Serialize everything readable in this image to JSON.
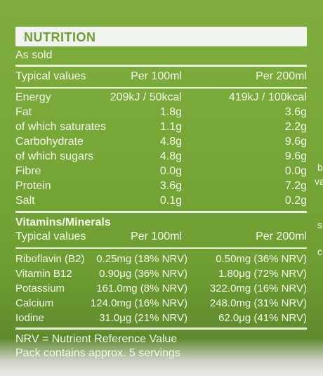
{
  "panel": {
    "title": "NUTRITION",
    "basis": "As sold",
    "energy_table": {
      "headers": [
        "Typical values",
        "Per 100ml",
        "Per 200ml"
      ],
      "rows": [
        {
          "name": "Energy",
          "per100": "209kJ / 50kcal",
          "per200": "419kJ / 100kcal"
        },
        {
          "name": "Fat",
          "per100": "1.8g",
          "per200": "3.6g"
        },
        {
          "name": "of which saturates",
          "per100": "1.1g",
          "per200": "2.2g"
        },
        {
          "name": "Carbohydrate",
          "per100": "4.8g",
          "per200": "9.6g"
        },
        {
          "name": "of which sugars",
          "per100": "4.8g",
          "per200": "9.6g"
        },
        {
          "name": "Fibre",
          "per100": "0.0g",
          "per200": "0.0g"
        },
        {
          "name": "Protein",
          "per100": "3.6g",
          "per200": "7.2g"
        },
        {
          "name": "Salt",
          "per100": "0.1g",
          "per200": "0.2g"
        }
      ]
    },
    "vitamins": {
      "title": "Vitamins/Minerals",
      "headers": [
        "Typical values",
        "Per 100ml",
        "Per 200ml"
      ],
      "rows": [
        {
          "name": "Riboflavin (B2)",
          "per100": "0.25mg (18% NRV)",
          "per200": "0.50mg (36% NRV)"
        },
        {
          "name": "Vitamin B12",
          "per100": "0.90μg (36% NRV)",
          "per200": "1.80μg (72% NRV)"
        },
        {
          "name": "Potassium",
          "per100": "161.0mg (8% NRV)",
          "per200": "322.0mg (16% NRV)"
        },
        {
          "name": "Calcium",
          "per100": "124.0mg (16% NRV)",
          "per200": "248.0mg (31% NRV)"
        },
        {
          "name": "Iodine",
          "per100": "31.0μg (21% NRV)",
          "per200": "62.0μg (41% NRV)"
        }
      ]
    },
    "footer": {
      "line1": "NRV = Nutrient Reference Value",
      "line2": "Pack contains approx. 5 servings"
    }
  },
  "edge_text": [
    "b",
    "va",
    "s",
    "c"
  ]
}
